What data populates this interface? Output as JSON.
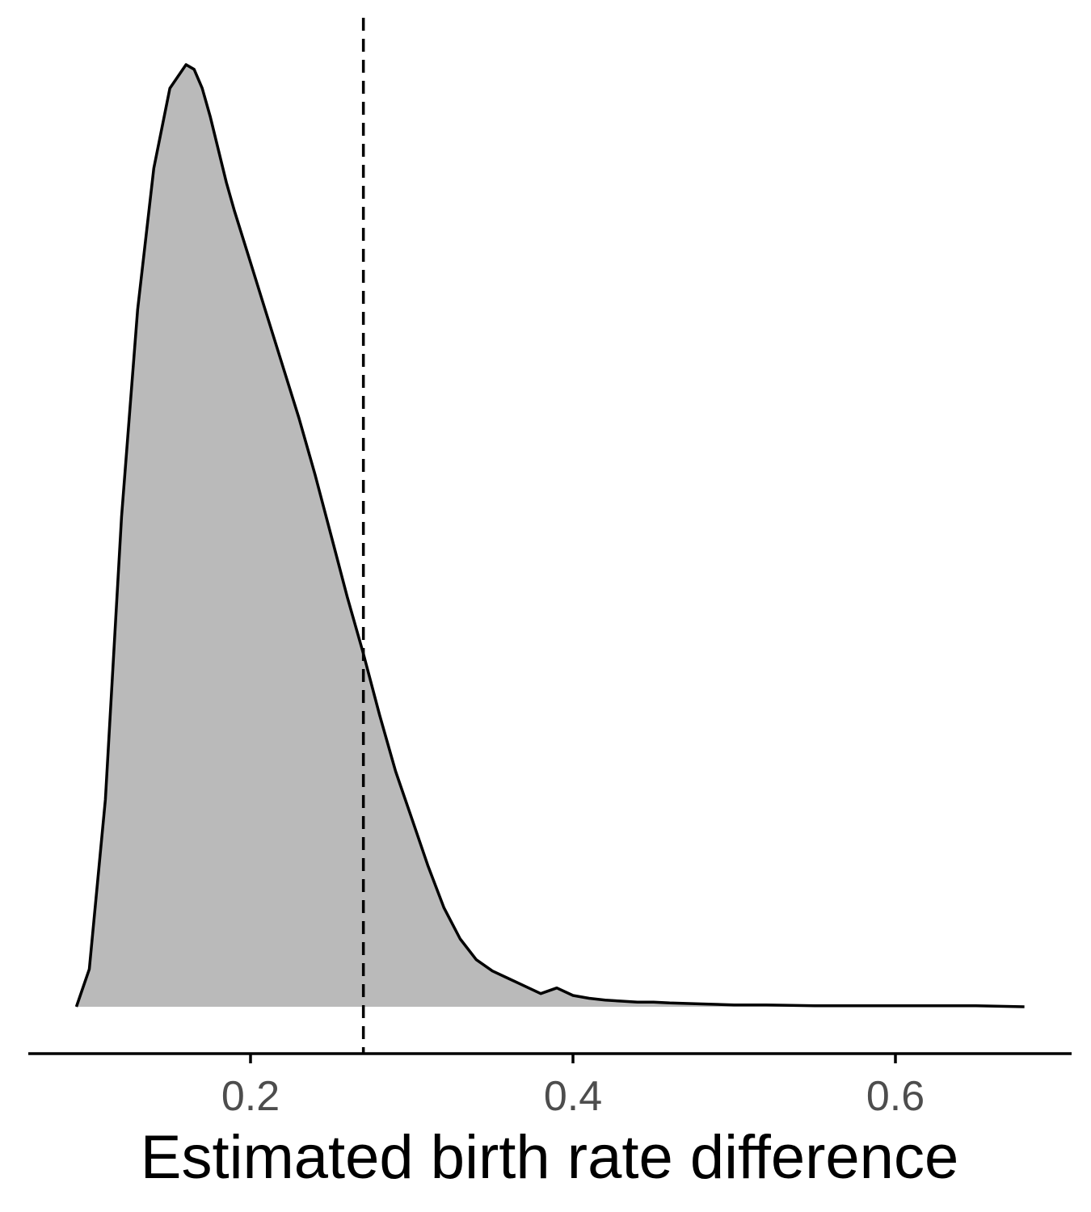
{
  "chart_data": {
    "type": "area",
    "xlabel": "Estimated birth rate difference",
    "ylabel": "",
    "x_ticks": [
      0.2,
      0.4,
      0.6
    ],
    "x_tick_labels": [
      "0.2",
      "0.4",
      "0.6"
    ],
    "xlim": [
      0.063,
      0.71
    ],
    "ylim": [
      0,
      1.05
    ],
    "grid": false,
    "y_axis_shown": false,
    "reference_line": {
      "x": 0.27,
      "style": "dashed"
    },
    "density": {
      "x": [
        0.092,
        0.1,
        0.11,
        0.12,
        0.13,
        0.14,
        0.15,
        0.16,
        0.165,
        0.17,
        0.175,
        0.18,
        0.185,
        0.19,
        0.2,
        0.21,
        0.22,
        0.23,
        0.24,
        0.25,
        0.26,
        0.27,
        0.28,
        0.29,
        0.3,
        0.31,
        0.32,
        0.33,
        0.34,
        0.35,
        0.36,
        0.37,
        0.38,
        0.39,
        0.4,
        0.41,
        0.42,
        0.43,
        0.44,
        0.45,
        0.46,
        0.48,
        0.5,
        0.52,
        0.55,
        0.57,
        0.6,
        0.62,
        0.65,
        0.68
      ],
      "y": [
        0.0,
        0.04,
        0.22,
        0.52,
        0.74,
        0.89,
        0.975,
        1.0,
        0.995,
        0.975,
        0.945,
        0.91,
        0.875,
        0.845,
        0.79,
        0.735,
        0.68,
        0.625,
        0.565,
        0.5,
        0.435,
        0.375,
        0.31,
        0.25,
        0.2,
        0.15,
        0.105,
        0.072,
        0.05,
        0.038,
        0.03,
        0.022,
        0.014,
        0.02,
        0.012,
        0.009,
        0.007,
        0.006,
        0.005,
        0.005,
        0.004,
        0.003,
        0.002,
        0.002,
        0.001,
        0.001,
        0.001,
        0.001,
        0.001,
        0.0
      ]
    },
    "fill_color": "#bababa",
    "line_color": "#000000"
  }
}
